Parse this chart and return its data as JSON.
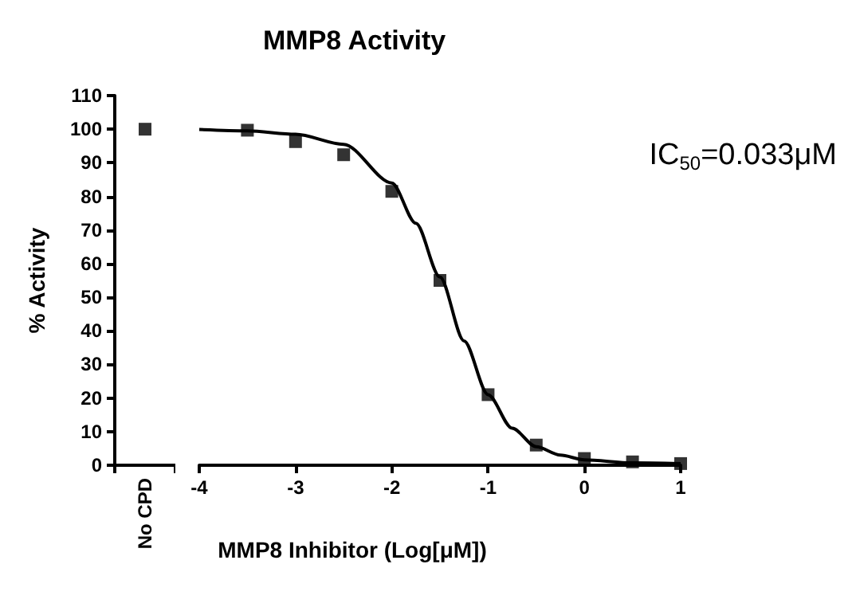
{
  "chart_data": [
    {
      "type": "scatter",
      "ylabel": "% Activity",
      "categories": [
        "No CPD"
      ],
      "values": [
        100
      ],
      "color": "#000000",
      "marker": "square",
      "ylim": [
        0,
        110
      ],
      "yticks": [
        0,
        10,
        20,
        30,
        40,
        50,
        60,
        70,
        80,
        90,
        100,
        110
      ],
      "grid": false
    },
    {
      "type": "scatter",
      "title": "MMP8 Activity",
      "xlabel": "MMP8 Inhibitor (Log[μM])",
      "annotations": [
        "IC$_{50}$=0.033μM"
      ],
      "marker": "square",
      "grid": false,
      "tick_labels": "x",
      "x": [
        -3.5,
        -3,
        -2.5,
        -2,
        -1.5,
        -1,
        -0.5,
        0,
        0.5,
        1
      ],
      "xlim": [
        -4,
        1
      ],
      "xticks": [
        -4,
        -3,
        -2,
        -1,
        0,
        1
      ],
      "ylim": [
        0,
        110
      ],
      "yticks": [
        0,
        10,
        20,
        30,
        40,
        50,
        60,
        70,
        80,
        90,
        100,
        110
      ],
      "series": [
        {
          "color": "#000000",
          "values": [
            99.7,
            96.3,
            92.4,
            81.5,
            55,
            21,
            6,
            2,
            1,
            0.5
          ]
        },
        {
          "type": "line",
          "color": "#000000",
          "marker": "none",
          "x": [
            -4,
            -3.5,
            -3,
            -2.5,
            -2,
            -1.75,
            -1.5,
            -1.25,
            -1,
            -0.75,
            -0.5,
            -0.25,
            0,
            0.5,
            1
          ],
          "values": [
            99.9,
            99.5,
            98.5,
            95.5,
            84,
            72,
            56,
            37,
            21,
            11,
            5.5,
            3,
            1.6,
            0.7,
            0.5
          ]
        }
      ]
    }
  ]
}
